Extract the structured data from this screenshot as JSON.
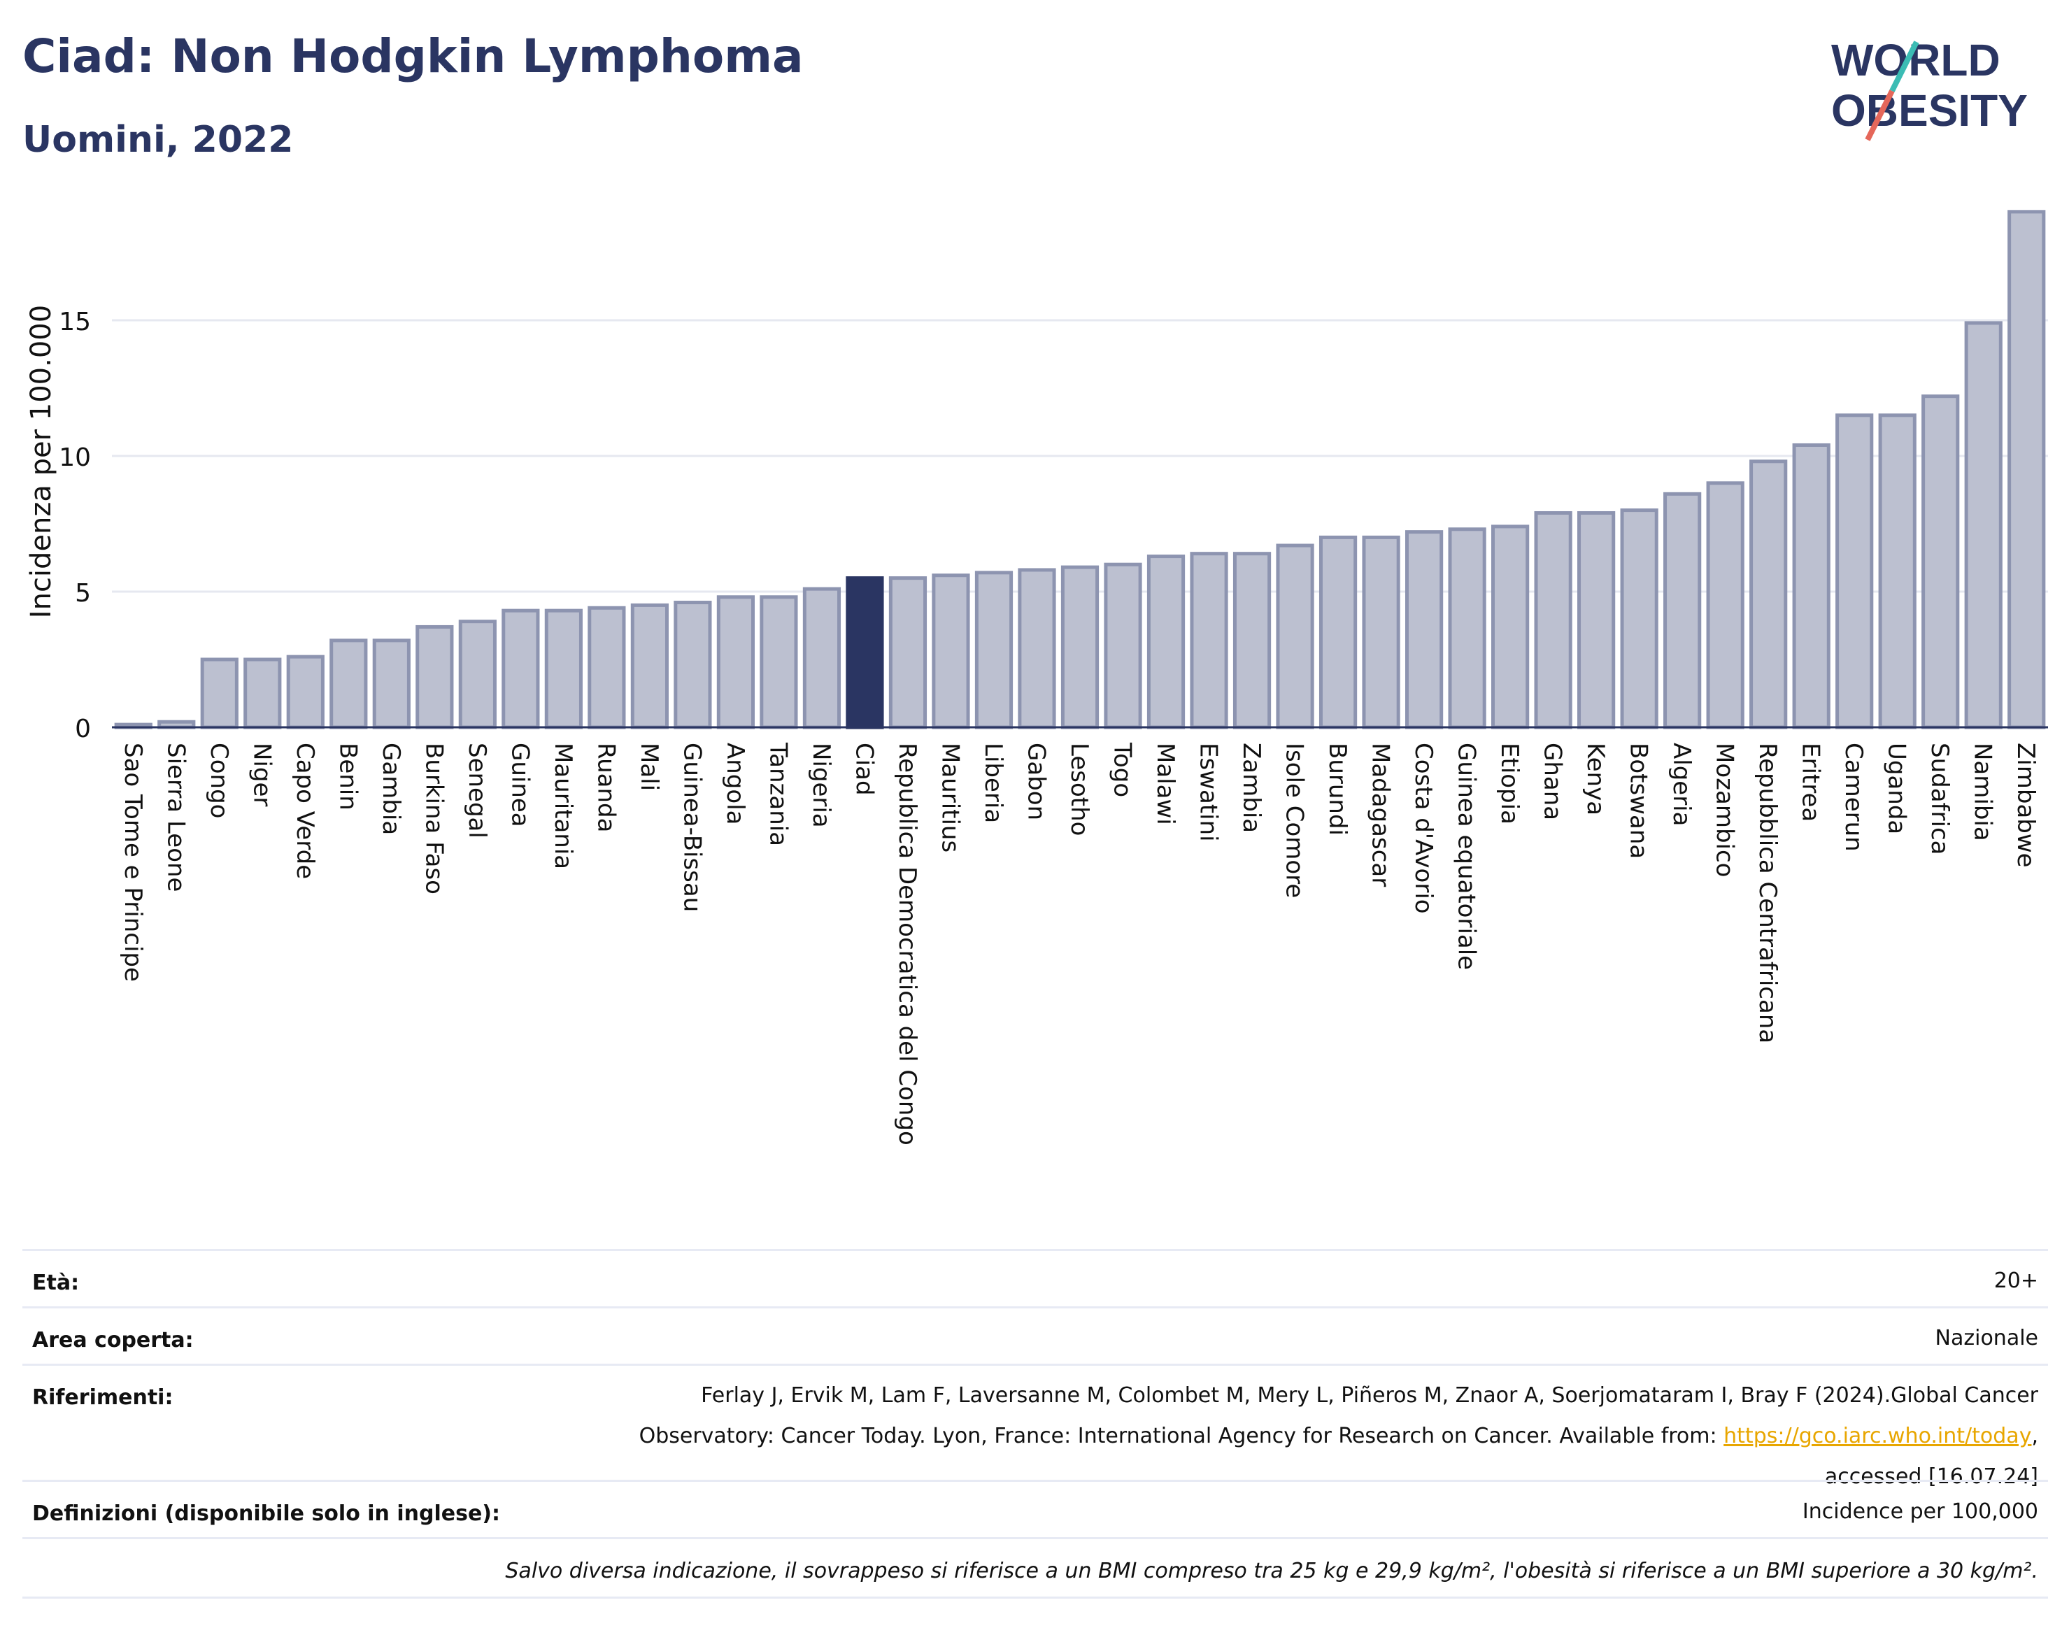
{
  "header": {
    "title": "Ciad: Non Hodgkin Lymphoma",
    "subtitle": "Uomini, 2022"
  },
  "logo": {
    "line1": "WORLD",
    "line2": "OBESITY"
  },
  "colors": {
    "highlight": "#2a3562",
    "bar": "#bcc0d0",
    "bar_edge": "#8d94b0",
    "accent_teal": "#3bbcb4",
    "accent_red": "#e5675a"
  },
  "chart_data": {
    "type": "bar",
    "ylabel": "Incidenza per 100.000",
    "xlabel": "",
    "ylim": [
      0,
      19
    ],
    "yticks": [
      0,
      5,
      10,
      15
    ],
    "grid": true,
    "highlight": "Ciad",
    "categories": [
      "Sao Tome e Principe",
      "Sierra Leone",
      "Congo",
      "Niger",
      "Capo Verde",
      "Benin",
      "Gambia",
      "Burkina Faso",
      "Senegal",
      "Guinea",
      "Mauritania",
      "Ruanda",
      "Mali",
      "Guinea-Bissau",
      "Angola",
      "Tanzania",
      "Nigeria",
      "Ciad",
      "Republica Democratica del Congo",
      "Mauritius",
      "Liberia",
      "Gabon",
      "Lesotho",
      "Togo",
      "Malawi",
      "Eswatini",
      "Zambia",
      "Isole Comore",
      "Burundi",
      "Madagascar",
      "Costa d'Avorio",
      "Guinea equatoriale",
      "Etiopia",
      "Ghana",
      "Kenya",
      "Botswana",
      "Algeria",
      "Mozambico",
      "Repubblica Centrafricana",
      "Eritrea",
      "Camerun",
      "Uganda",
      "Sudafrica",
      "Namibia",
      "Zimbabwe"
    ],
    "values": [
      0.1,
      0.2,
      2.5,
      2.5,
      2.6,
      3.2,
      3.2,
      3.7,
      3.9,
      4.3,
      4.3,
      4.4,
      4.5,
      4.6,
      4.8,
      4.8,
      5.1,
      5.5,
      5.5,
      5.6,
      5.7,
      5.8,
      5.9,
      6.0,
      6.3,
      6.4,
      6.4,
      6.7,
      7.0,
      7.0,
      7.2,
      7.3,
      7.4,
      7.9,
      7.9,
      8.0,
      8.6,
      9.0,
      9.8,
      10.4,
      11.5,
      11.5,
      12.2,
      14.9,
      19.0
    ]
  },
  "info": {
    "age_label": "Età:",
    "age_value": "20+",
    "area_label": "Area coperta:",
    "area_value": "Nazionale",
    "refs_label": "Riferimenti:",
    "refs_line1": "Ferlay J, Ervik M, Lam F, Laversanne M, Colombet M, Mery L, Piñeros M, Znaor A, Soerjomataram I, Bray F (2024).Global Cancer",
    "refs_line2": "Observatory: Cancer Today. Lyon, France: International Agency for Research on Cancer. Available from: ",
    "refs_link": "https://gco.iarc.who.int/today",
    "refs_line2_end": ",",
    "refs_line3": "accessed [16.07.24]",
    "defs_label": "Definizioni (disponibile solo in inglese):",
    "defs_value": "Incidence per 100,000",
    "note": "Salvo diversa indicazione, il sovrappeso si riferisce a un BMI compreso tra 25 kg e 29,9 kg/m², l'obesità si riferisce a un BMI superiore a 30 kg/m²."
  }
}
